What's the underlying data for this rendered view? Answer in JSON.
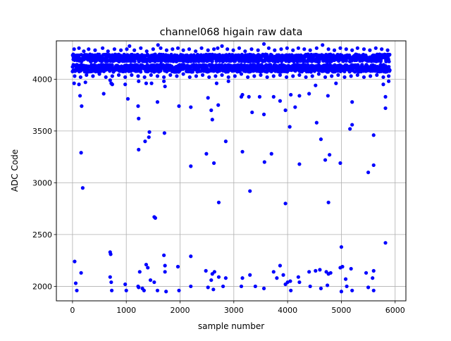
{
  "chart_data": {
    "type": "scatter",
    "title": "channel068 higain raw data",
    "xlabel": "sample number",
    "ylabel": "ADC Code",
    "xlim": [
      -300,
      6200
    ],
    "ylim": [
      1860,
      4370
    ],
    "xticks": [
      0,
      1000,
      2000,
      3000,
      4000,
      5000,
      6000
    ],
    "yticks": [
      2000,
      2500,
      3000,
      3500,
      4000
    ],
    "grid": true,
    "marker_color": "#0000ff",
    "band_ranges": [
      {
        "x_start": 0,
        "x_end": 5900,
        "y_min": 4170,
        "y_max": 4240
      },
      {
        "x_start": 0,
        "x_end": 5900,
        "y_min": 4070,
        "y_max": 4140
      }
    ],
    "band_fringe": [
      [
        30,
        4290
      ],
      [
        120,
        4300
      ],
      [
        210,
        4270
      ],
      [
        300,
        4290
      ],
      [
        420,
        4280
      ],
      [
        560,
        4300
      ],
      [
        660,
        4270
      ],
      [
        780,
        4290
      ],
      [
        900,
        4280
      ],
      [
        1010,
        4290
      ],
      [
        1060,
        4320
      ],
      [
        1150,
        4280
      ],
      [
        1270,
        4300
      ],
      [
        1380,
        4270
      ],
      [
        1500,
        4290
      ],
      [
        1590,
        4330
      ],
      [
        1640,
        4300
      ],
      [
        1750,
        4280
      ],
      [
        1860,
        4290
      ],
      [
        1960,
        4300
      ],
      [
        2060,
        4280
      ],
      [
        2170,
        4290
      ],
      [
        2290,
        4270
      ],
      [
        2400,
        4300
      ],
      [
        2520,
        4280
      ],
      [
        2630,
        4290
      ],
      [
        2700,
        4300
      ],
      [
        2780,
        4320
      ],
      [
        2880,
        4290
      ],
      [
        2990,
        4280
      ],
      [
        3100,
        4300
      ],
      [
        3210,
        4270
      ],
      [
        3330,
        4290
      ],
      [
        3450,
        4280
      ],
      [
        3560,
        4340
      ],
      [
        3650,
        4300
      ],
      [
        3760,
        4280
      ],
      [
        3880,
        4290
      ],
      [
        3990,
        4300
      ],
      [
        4100,
        4280
      ],
      [
        4200,
        4300
      ],
      [
        4310,
        4290
      ],
      [
        4420,
        4280
      ],
      [
        4540,
        4300
      ],
      [
        4650,
        4330
      ],
      [
        4760,
        4290
      ],
      [
        4870,
        4280
      ],
      [
        4980,
        4300
      ],
      [
        5090,
        4290
      ],
      [
        5200,
        4280
      ],
      [
        5300,
        4300
      ],
      [
        5420,
        4290
      ],
      [
        5530,
        4280
      ],
      [
        5640,
        4300
      ],
      [
        5750,
        4290
      ],
      [
        5860,
        4280
      ],
      [
        40,
        4030
      ],
      [
        150,
        4020
      ],
      [
        260,
        4040
      ],
      [
        380,
        4030
      ],
      [
        500,
        4050
      ],
      [
        620,
        4020
      ],
      [
        740,
        4030
      ],
      [
        860,
        4040
      ],
      [
        980,
        4020
      ],
      [
        1100,
        4040
      ],
      [
        1220,
        4030
      ],
      [
        1340,
        4020
      ],
      [
        1460,
        4040
      ],
      [
        1580,
        4030
      ],
      [
        1700,
        4020
      ],
      [
        1820,
        4040
      ],
      [
        1940,
        4030
      ],
      [
        2060,
        4050
      ],
      [
        2180,
        4020
      ],
      [
        2300,
        4030
      ],
      [
        2420,
        4040
      ],
      [
        2540,
        4020
      ],
      [
        2660,
        4030
      ],
      [
        2780,
        4040
      ],
      [
        2900,
        4020
      ],
      [
        3020,
        4030
      ],
      [
        3140,
        4050
      ],
      [
        3260,
        4020
      ],
      [
        3380,
        4030
      ],
      [
        3500,
        4040
      ],
      [
        3620,
        4020
      ],
      [
        3740,
        4030
      ],
      [
        3860,
        4040
      ],
      [
        3980,
        4020
      ],
      [
        4100,
        4030
      ],
      [
        4220,
        4040
      ],
      [
        4340,
        4020
      ],
      [
        4460,
        4030
      ],
      [
        4580,
        4050
      ],
      [
        4700,
        4020
      ],
      [
        4820,
        4030
      ],
      [
        4940,
        4040
      ],
      [
        5060,
        4020
      ],
      [
        5180,
        4030
      ],
      [
        5300,
        4040
      ],
      [
        5420,
        4020
      ],
      [
        5540,
        4030
      ],
      [
        5660,
        4040
      ],
      [
        5780,
        4020
      ],
      [
        5880,
        4030
      ]
    ],
    "outliers": [
      [
        30,
        3960
      ],
      [
        120,
        3950
      ],
      [
        140,
        3840
      ],
      [
        160,
        3290
      ],
      [
        170,
        3740
      ],
      [
        190,
        2950
      ],
      [
        240,
        3970
      ],
      [
        580,
        3860
      ],
      [
        700,
        3990
      ],
      [
        720,
        3960
      ],
      [
        740,
        3950
      ],
      [
        980,
        3950
      ],
      [
        1030,
        3810
      ],
      [
        1220,
        3740
      ],
      [
        1230,
        3620
      ],
      [
        1230,
        3320
      ],
      [
        1230,
        3980
      ],
      [
        1350,
        3400
      ],
      [
        1420,
        3440
      ],
      [
        1430,
        3490
      ],
      [
        1370,
        3960
      ],
      [
        1470,
        3960
      ],
      [
        1520,
        2670
      ],
      [
        1540,
        2660
      ],
      [
        1580,
        3780
      ],
      [
        1700,
        3980
      ],
      [
        1710,
        3480
      ],
      [
        1720,
        3930
      ],
      [
        1980,
        3740
      ],
      [
        2200,
        3730
      ],
      [
        2200,
        3160
      ],
      [
        2490,
        3280
      ],
      [
        2520,
        3820
      ],
      [
        2580,
        3700
      ],
      [
        2600,
        3610
      ],
      [
        2630,
        3190
      ],
      [
        2680,
        3960
      ],
      [
        2710,
        3750
      ],
      [
        2720,
        2810
      ],
      [
        2850,
        3400
      ],
      [
        2900,
        3980
      ],
      [
        3140,
        3830
      ],
      [
        3160,
        3300
      ],
      [
        3160,
        3850
      ],
      [
        3280,
        3830
      ],
      [
        3300,
        2920
      ],
      [
        3340,
        3680
      ],
      [
        3480,
        3830
      ],
      [
        3560,
        3660
      ],
      [
        3570,
        3200
      ],
      [
        3700,
        3280
      ],
      [
        3740,
        3830
      ],
      [
        3860,
        3790
      ],
      [
        3960,
        3700
      ],
      [
        3960,
        2800
      ],
      [
        4040,
        3540
      ],
      [
        4060,
        3850
      ],
      [
        4140,
        3730
      ],
      [
        4220,
        3180
      ],
      [
        4220,
        3840
      ],
      [
        4400,
        3860
      ],
      [
        4520,
        3940
      ],
      [
        4540,
        3580
      ],
      [
        4620,
        3420
      ],
      [
        4700,
        3220
      ],
      [
        4750,
        3840
      ],
      [
        4760,
        2810
      ],
      [
        4780,
        3270
      ],
      [
        4980,
        3190
      ],
      [
        5160,
        3520
      ],
      [
        5200,
        3780
      ],
      [
        5200,
        3560
      ],
      [
        5500,
        3100
      ],
      [
        5600,
        3460
      ],
      [
        5600,
        3170
      ],
      [
        5780,
        3950
      ],
      [
        5820,
        3830
      ],
      [
        5820,
        3720
      ],
      [
        5880,
        3980
      ],
      [
        4900,
        3960
      ],
      [
        40,
        2240
      ],
      [
        60,
        2030
      ],
      [
        80,
        1960
      ],
      [
        160,
        2130
      ],
      [
        700,
        2330
      ],
      [
        710,
        2310
      ],
      [
        700,
        2090
      ],
      [
        720,
        2040
      ],
      [
        730,
        1960
      ],
      [
        980,
        2020
      ],
      [
        1000,
        1960
      ],
      [
        1220,
        2000
      ],
      [
        1230,
        1990
      ],
      [
        1250,
        2140
      ],
      [
        1300,
        1980
      ],
      [
        1330,
        1960
      ],
      [
        1370,
        2210
      ],
      [
        1400,
        2180
      ],
      [
        1450,
        2060
      ],
      [
        1520,
        2040
      ],
      [
        1580,
        1960
      ],
      [
        1700,
        2300
      ],
      [
        1720,
        2200
      ],
      [
        1720,
        2140
      ],
      [
        1740,
        1950
      ],
      [
        1960,
        2190
      ],
      [
        1980,
        1960
      ],
      [
        2200,
        2290
      ],
      [
        2200,
        2000
      ],
      [
        2480,
        2150
      ],
      [
        2520,
        1990
      ],
      [
        2580,
        2060
      ],
      [
        2600,
        2120
      ],
      [
        2620,
        1970
      ],
      [
        2640,
        2140
      ],
      [
        2720,
        2090
      ],
      [
        2800,
        2000
      ],
      [
        2850,
        2080
      ],
      [
        3140,
        2000
      ],
      [
        3160,
        2080
      ],
      [
        3300,
        2110
      ],
      [
        3400,
        2000
      ],
      [
        3560,
        1980
      ],
      [
        3740,
        2140
      ],
      [
        3800,
        2080
      ],
      [
        3860,
        2200
      ],
      [
        3920,
        2110
      ],
      [
        3960,
        2020
      ],
      [
        4000,
        2040
      ],
      [
        4050,
        2050
      ],
      [
        4060,
        1960
      ],
      [
        4200,
        2090
      ],
      [
        4220,
        2040
      ],
      [
        4400,
        2140
      ],
      [
        4420,
        2000
      ],
      [
        4520,
        2150
      ],
      [
        4600,
        2160
      ],
      [
        4620,
        1980
      ],
      [
        4720,
        2140
      ],
      [
        4740,
        2010
      ],
      [
        4760,
        2120
      ],
      [
        4800,
        2130
      ],
      [
        4980,
        2180
      ],
      [
        5000,
        1950
      ],
      [
        5000,
        2380
      ],
      [
        5020,
        2190
      ],
      [
        5080,
        2070
      ],
      [
        5100,
        2000
      ],
      [
        5180,
        2170
      ],
      [
        5200,
        1960
      ],
      [
        5460,
        2130
      ],
      [
        5500,
        1990
      ],
      [
        5580,
        2080
      ],
      [
        5600,
        2150
      ],
      [
        5600,
        1960
      ],
      [
        5820,
        2420
      ]
    ]
  }
}
